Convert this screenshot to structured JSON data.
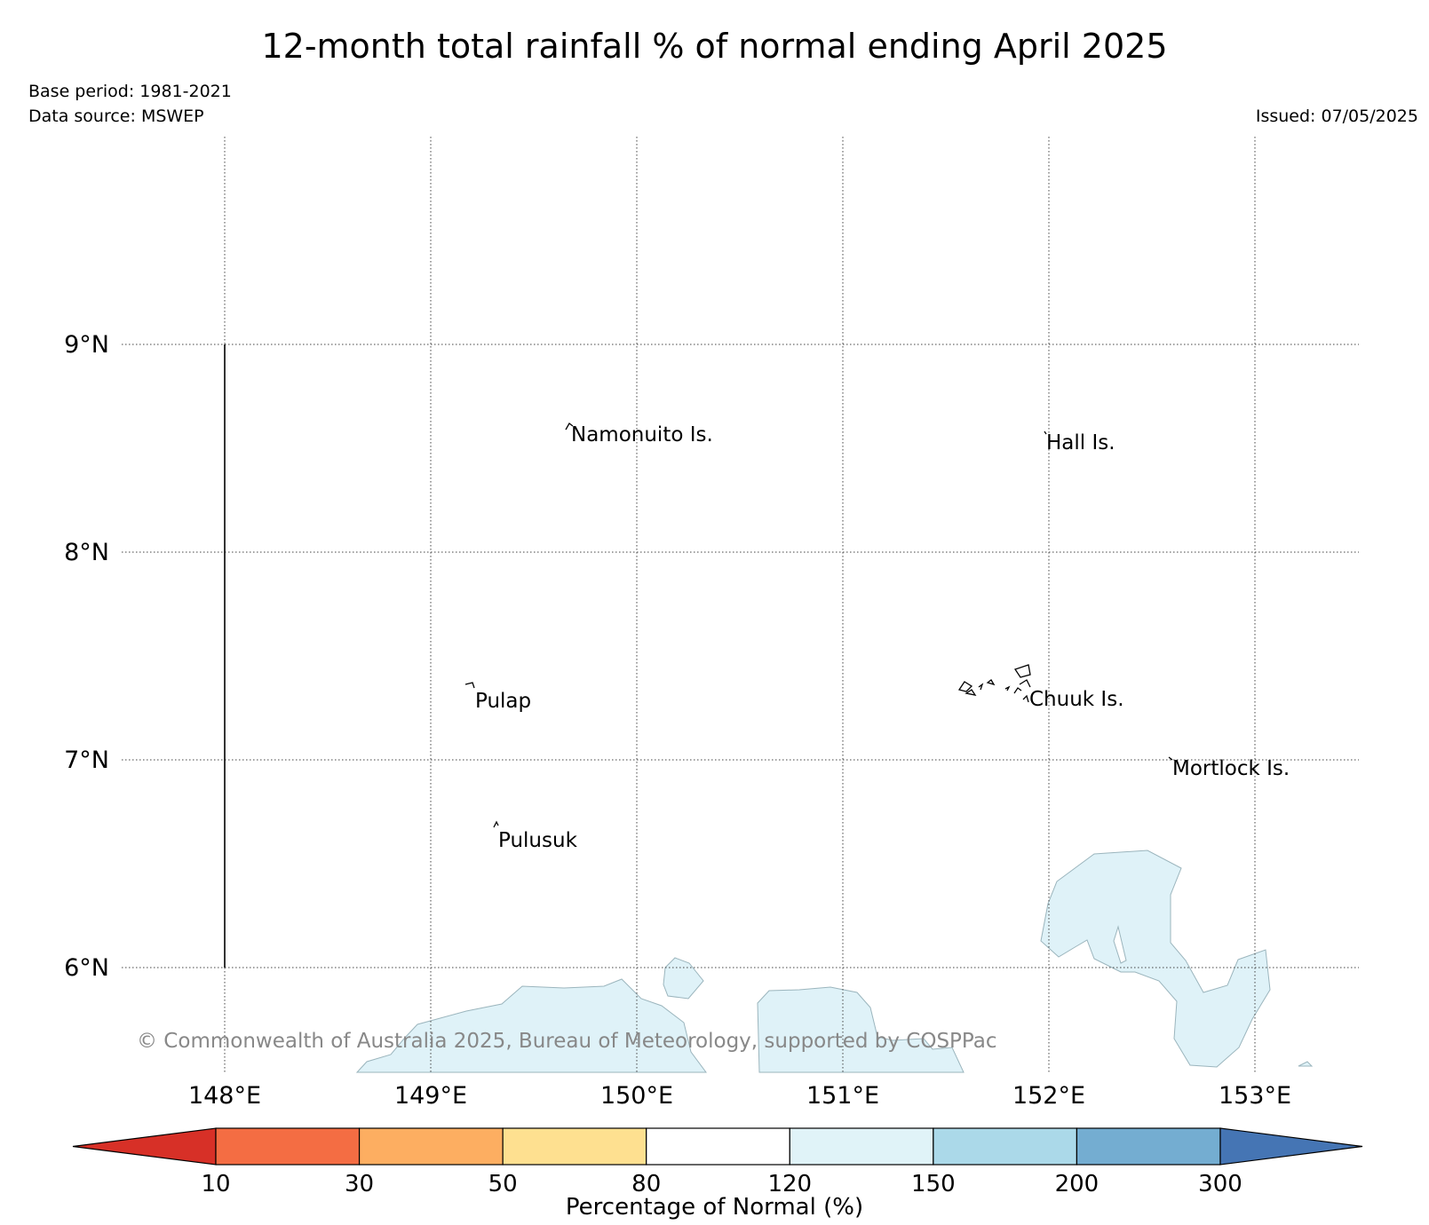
{
  "header": {
    "title": "12-month total rainfall % of normal ending April 2025",
    "base_period": "Base period: 1981-2021",
    "data_source": "Data source: MSWEP",
    "issued": "Issued: 07/05/2025"
  },
  "map": {
    "lon_ticks": [
      "148°E",
      "149°E",
      "150°E",
      "151°E",
      "152°E",
      "153°E"
    ],
    "lat_ticks": [
      "9°N",
      "8°N",
      "7°N",
      "6°N"
    ],
    "places": [
      {
        "name": "Namonuito Is."
      },
      {
        "name": "Hall Is."
      },
      {
        "name": "Pulap"
      },
      {
        "name": "Chuuk Is."
      },
      {
        "name": "Mortlock Is."
      },
      {
        "name": "Pulusuk"
      }
    ],
    "copyright": "© Commonwealth of Australia 2025, Bureau of Meteorology, supported by COSPPac",
    "shaded_category": "120-150",
    "shade_color": "#dff2f8"
  },
  "colorbar": {
    "label": "Percentage of Normal (%)",
    "ticks": [
      "10",
      "30",
      "50",
      "80",
      "120",
      "150",
      "200",
      "300"
    ],
    "colors": {
      "under": "#d73027",
      "bins": [
        "#f46d43",
        "#fdae61",
        "#fee090",
        "#ffffff",
        "#e0f3f8",
        "#abd9e9",
        "#74add1"
      ],
      "over": "#4575b4"
    }
  }
}
